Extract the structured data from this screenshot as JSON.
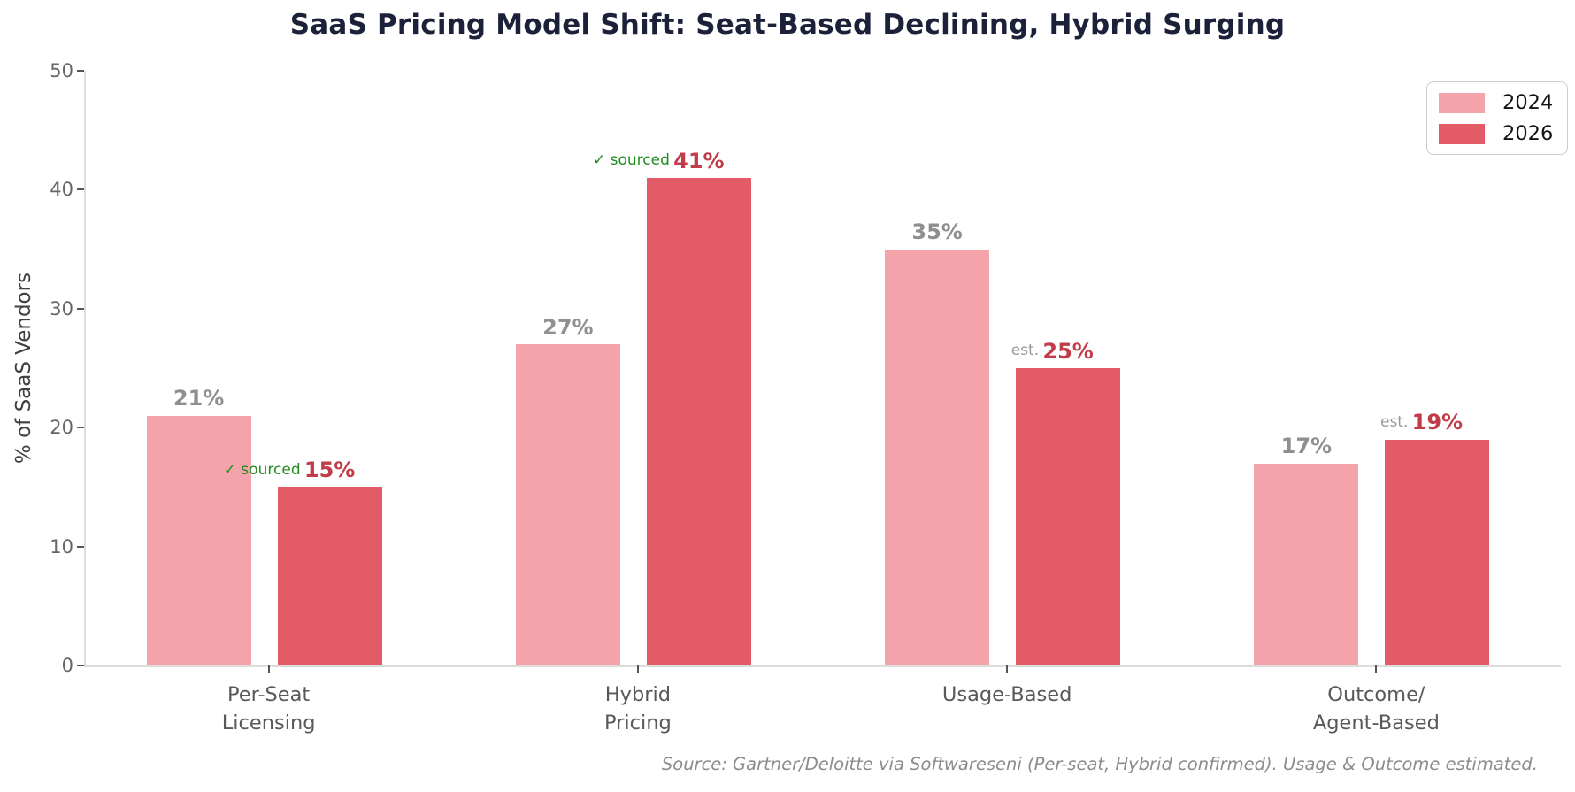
{
  "chart_data": {
    "type": "bar",
    "title": "SaaS Pricing Model Shift: Seat-Based Declining, Hybrid Surging",
    "ylabel": "% of SaaS Vendors",
    "xlabel": "",
    "ylim": [
      0,
      50
    ],
    "yticks": [
      0,
      10,
      20,
      30,
      40,
      50
    ],
    "grid": false,
    "legend_position": "upper right",
    "categories": [
      "Per-Seat\nLicensing",
      "Hybrid\nPricing",
      "Usage-Based",
      "Outcome/\nAgent-Based"
    ],
    "series": [
      {
        "name": "2024",
        "color": "#f5a3aa",
        "values": [
          21,
          27,
          35,
          17
        ],
        "value_labels": [
          "21%",
          "27%",
          "35%",
          "17%"
        ],
        "label_color": "#8f8f8f"
      },
      {
        "name": "2026",
        "color": "#e25b66",
        "values": [
          15,
          41,
          25,
          19
        ],
        "value_labels": [
          "15%",
          "41%",
          "25%",
          "19%"
        ],
        "label_color": "#c23b49",
        "annotations": [
          {
            "text": "✓ sourced",
            "color": "#228b22"
          },
          {
            "text": "✓ sourced",
            "color": "#228b22"
          },
          {
            "text": "est.",
            "color": "#999999"
          },
          {
            "text": "est.",
            "color": "#999999"
          }
        ]
      }
    ],
    "legend": {
      "entries": [
        {
          "label": "2024",
          "color": "#f5a3aa"
        },
        {
          "label": "2026",
          "color": "#e25b66"
        }
      ]
    },
    "source_note": "Source: Gartner/Deloitte via Softwareseni (Per-seat, Hybrid confirmed). Usage & Outcome estimated.",
    "colors": {
      "title": "#1b2138",
      "axis_text": "#666666",
      "category_text": "#595959",
      "spine": "#dcdcdc",
      "tick": "#555555",
      "source_text": "#8c8c8c"
    }
  }
}
